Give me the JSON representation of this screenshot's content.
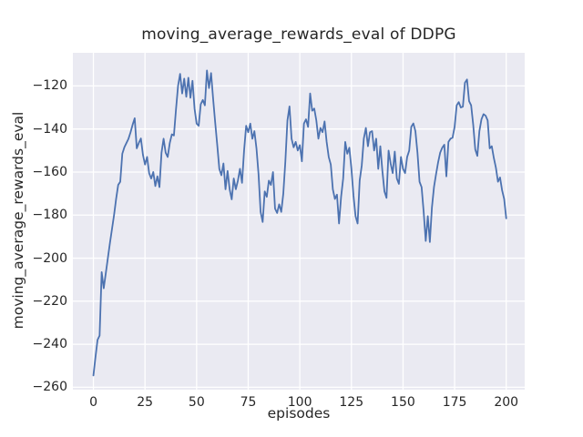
{
  "chart_data": {
    "type": "line",
    "title": "moving_average_rewards_eval of DDPG",
    "xlabel": "episodes",
    "ylabel": "moving_average_rewards_eval",
    "legend": null,
    "grid": true,
    "plot_bg_color": "#eaeaf2",
    "grid_color": "#ffffff",
    "figure_bg_color": "#ffffff",
    "text_color": "#262626",
    "line_color": "#4c72b0",
    "line_width": 1.8,
    "xlim": [
      -9.95,
      208.95
    ],
    "ylim": [
      -261.1,
      -104.6
    ],
    "xticks": {
      "values": [
        0,
        25,
        50,
        75,
        100,
        125,
        150,
        175,
        200
      ],
      "labels": [
        "0",
        "25",
        "50",
        "75",
        "100",
        "125",
        "150",
        "175",
        "200"
      ]
    },
    "yticks": {
      "values": [
        -120,
        -140,
        -160,
        -180,
        -200,
        -220,
        -240,
        -260
      ],
      "labels": [
        "−120",
        "−140",
        "−160",
        "−180",
        "−200",
        "−220",
        "−240",
        "−260"
      ]
    },
    "x_start": 0,
    "x_step": 1,
    "series": [
      {
        "name": "moving_average_rewards_eval",
        "values": [
          -254.5,
          -246,
          -238,
          -236,
          -206.5,
          -214,
          -207,
          -200,
          -193,
          -186.5,
          -180,
          -172.5,
          -166,
          -164.5,
          -151.5,
          -148.5,
          -146.5,
          -144.5,
          -141.5,
          -138,
          -135,
          -149,
          -146.5,
          -144.4,
          -152,
          -156.5,
          -153,
          -160.5,
          -163,
          -160,
          -166.5,
          -162,
          -167,
          -151,
          -144.5,
          -151,
          -153,
          -146.5,
          -142.5,
          -143,
          -131,
          -120,
          -114.4,
          -123.5,
          -116.6,
          -125,
          -116.2,
          -125.5,
          -117.6,
          -130.5,
          -137.5,
          -138.5,
          -128.5,
          -126.5,
          -129,
          -112.8,
          -121,
          -114,
          -126,
          -137,
          -147.5,
          -158.5,
          -161.5,
          -156,
          -168,
          -159.5,
          -168,
          -172.7,
          -163,
          -168,
          -164,
          -158.5,
          -165,
          -150,
          -138.5,
          -141.5,
          -137.5,
          -144.5,
          -141,
          -149,
          -161,
          -178.5,
          -183.2,
          -169,
          -171.5,
          -164,
          -166,
          -160,
          -177,
          -179,
          -175,
          -178.5,
          -170,
          -155,
          -136,
          -129.5,
          -144.5,
          -148.5,
          -146,
          -150,
          -147.5,
          -155,
          -137.5,
          -135.5,
          -139,
          -123.5,
          -131.5,
          -130.5,
          -136,
          -144.5,
          -139.5,
          -141.5,
          -136.5,
          -146,
          -153,
          -156.5,
          -168,
          -172.5,
          -170.5,
          -183.9,
          -171.5,
          -163,
          -146,
          -151.5,
          -148.7,
          -158.5,
          -171,
          -180.5,
          -183.9,
          -164,
          -157,
          -144.5,
          -139.5,
          -148,
          -141.5,
          -141,
          -150,
          -144.5,
          -158.5,
          -148,
          -159.5,
          -169,
          -172,
          -150,
          -156,
          -160.5,
          -150.5,
          -163,
          -165.5,
          -153,
          -158.5,
          -160.5,
          -153,
          -150,
          -139,
          -137.4,
          -141,
          -151,
          -164.5,
          -167,
          -178.5,
          -192,
          -180.5,
          -192.5,
          -176.5,
          -167,
          -161,
          -155.5,
          -151,
          -148.7,
          -147.3,
          -162,
          -146,
          -144.5,
          -144,
          -139,
          -129,
          -127.5,
          -130,
          -129.6,
          -118.5,
          -117,
          -127,
          -129,
          -138,
          -149.5,
          -152.5,
          -141,
          -135.5,
          -133.1,
          -133.8,
          -136,
          -149,
          -148,
          -153.5,
          -158,
          -164.5,
          -162.5,
          -168.5,
          -172.5,
          -181.5
        ]
      }
    ]
  }
}
